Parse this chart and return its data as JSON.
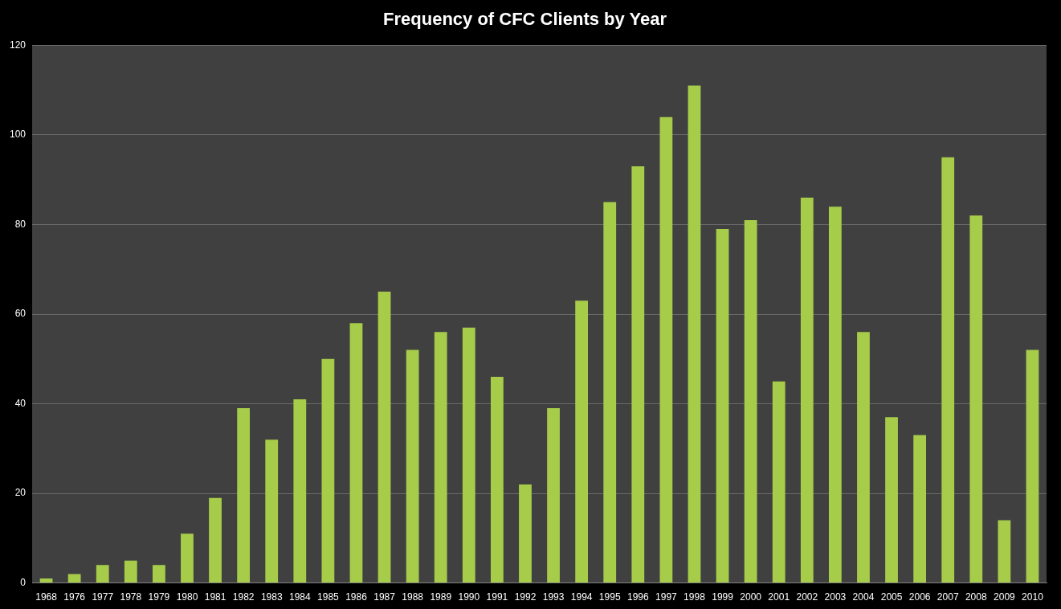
{
  "chart_data": {
    "type": "bar",
    "title": "Frequency of CFC Clients by Year",
    "categories": [
      "1968",
      "1976",
      "1977",
      "1978",
      "1979",
      "1980",
      "1981",
      "1982",
      "1983",
      "1984",
      "1985",
      "1986",
      "1987",
      "1988",
      "1989",
      "1990",
      "1991",
      "1992",
      "1993",
      "1994",
      "1995",
      "1996",
      "1997",
      "1998",
      "1999",
      "2000",
      "2001",
      "2002",
      "2003",
      "2004",
      "2005",
      "2006",
      "2007",
      "2008",
      "2009",
      "2010"
    ],
    "values": [
      1,
      2,
      4,
      5,
      4,
      11,
      19,
      39,
      32,
      41,
      50,
      58,
      65,
      52,
      56,
      57,
      46,
      22,
      39,
      63,
      85,
      93,
      104,
      111,
      79,
      81,
      45,
      86,
      84,
      56,
      37,
      33,
      95,
      82,
      14,
      52
    ],
    "color": "#a6cc4a",
    "ylim": [
      0,
      120
    ],
    "yticks": [
      0,
      20,
      40,
      60,
      80,
      100,
      120
    ],
    "grid": "y"
  }
}
